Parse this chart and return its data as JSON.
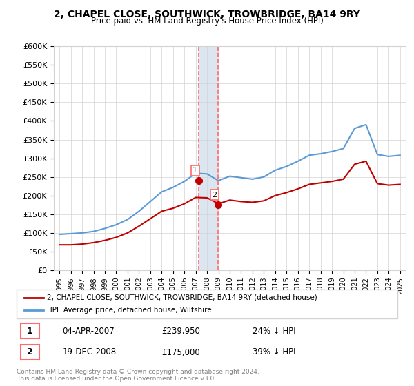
{
  "title": "2, CHAPEL CLOSE, SOUTHWICK, TROWBRIDGE, BA14 9RY",
  "subtitle": "Price paid vs. HM Land Registry's House Price Index (HPI)",
  "hpi_label": "HPI: Average price, detached house, Wiltshire",
  "property_label": "2, CHAPEL CLOSE, SOUTHWICK, TROWBRIDGE, BA14 9RY (detached house)",
  "footer": "Contains HM Land Registry data © Crown copyright and database right 2024.\nThis data is licensed under the Open Government Licence v3.0.",
  "transactions": [
    {
      "num": 1,
      "date": "04-APR-2007",
      "price": 239950,
      "pct": "24%",
      "dir": "↓"
    },
    {
      "num": 2,
      "date": "19-DEC-2008",
      "price": 175000,
      "pct": "39%",
      "dir": "↓"
    }
  ],
  "transaction_dates": [
    2007.25,
    2008.96
  ],
  "transaction_prices": [
    239950,
    175000
  ],
  "hpi_color": "#5b9bd5",
  "price_color": "#c00000",
  "marker_color": "#c00000",
  "vline_color": "#ff6b6b",
  "highlight_color": "#dce6f1",
  "ylim": [
    0,
    600000
  ],
  "xlim_start": 1994.5,
  "xlim_end": 2025.5,
  "yticks": [
    0,
    50000,
    100000,
    150000,
    200000,
    250000,
    300000,
    350000,
    400000,
    450000,
    500000,
    550000,
    600000
  ],
  "ytick_labels": [
    "£0",
    "£50K",
    "£100K",
    "£150K",
    "£200K",
    "£250K",
    "£300K",
    "£350K",
    "£400K",
    "£450K",
    "£500K",
    "£550K",
    "£600K"
  ],
  "hpi_years": [
    1995,
    1996,
    1997,
    1998,
    1999,
    2000,
    2001,
    2002,
    2003,
    2004,
    2005,
    2006,
    2007,
    2008,
    2009,
    2010,
    2011,
    2012,
    2013,
    2014,
    2015,
    2016,
    2017,
    2018,
    2019,
    2020,
    2021,
    2022,
    2023,
    2024,
    2025
  ],
  "hpi_values": [
    96000,
    98000,
    100000,
    104000,
    112000,
    122000,
    136000,
    158000,
    184000,
    210000,
    222000,
    238000,
    260000,
    258000,
    240000,
    252000,
    248000,
    244000,
    250000,
    268000,
    278000,
    292000,
    308000,
    312000,
    318000,
    326000,
    380000,
    390000,
    310000,
    305000,
    308000
  ],
  "price_line_years": [
    1995,
    1996,
    1997,
    1998,
    1999,
    2000,
    2001,
    2002,
    2003,
    2004,
    2005,
    2006,
    2007,
    2008,
    2009,
    2010,
    2011,
    2012,
    2013,
    2014,
    2015,
    2016,
    2017,
    2018,
    2019,
    2020,
    2021,
    2022,
    2023,
    2024,
    2025
  ],
  "price_line_values": [
    68000,
    68000,
    70000,
    74000,
    80000,
    88000,
    100000,
    118000,
    138000,
    158000,
    166000,
    178000,
    195000,
    194000,
    178000,
    188000,
    184000,
    182000,
    186000,
    200000,
    208000,
    218000,
    230000,
    234000,
    238000,
    244000,
    284000,
    292000,
    232000,
    228000,
    230000
  ]
}
